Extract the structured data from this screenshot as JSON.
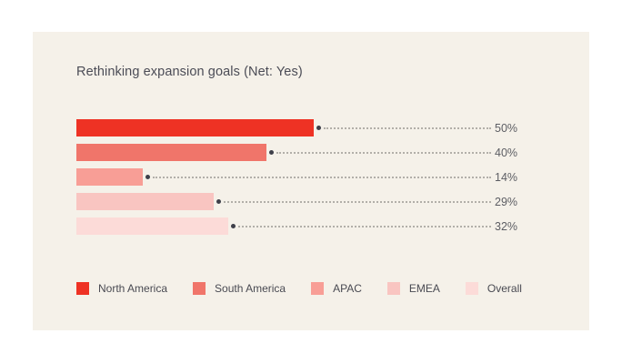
{
  "card": {
    "title": "Rethinking expansion goals (Net: Yes)"
  },
  "chart_data": {
    "type": "bar",
    "orientation": "horizontal",
    "title": "Rethinking expansion goals (Net: Yes)",
    "categories": [
      "North America",
      "South America",
      "APAC",
      "EMEA",
      "Overall"
    ],
    "values": [
      50,
      40,
      14,
      29,
      32
    ],
    "value_labels": [
      "50%",
      "40%",
      "14%",
      "29%",
      "32%"
    ],
    "bar_colors": [
      "#ee3224",
      "#f0756a",
      "#f89e96",
      "#f9c5c1",
      "#fcdbd8"
    ],
    "xlim": [
      0,
      100
    ],
    "grid": false,
    "legend_position": "bottom",
    "value_label_position": "right-aligned-column",
    "leader_style": "dotted-line-with-dot"
  },
  "colors": {
    "page_background": "#ffffff",
    "card_background": "#f5f1e9",
    "title_text": "#4b4c56",
    "value_text": "#5d5e64",
    "legend_text": "#494a52",
    "endpoint_dot": "#3e3f49",
    "leader_line": "#b2afa9"
  }
}
